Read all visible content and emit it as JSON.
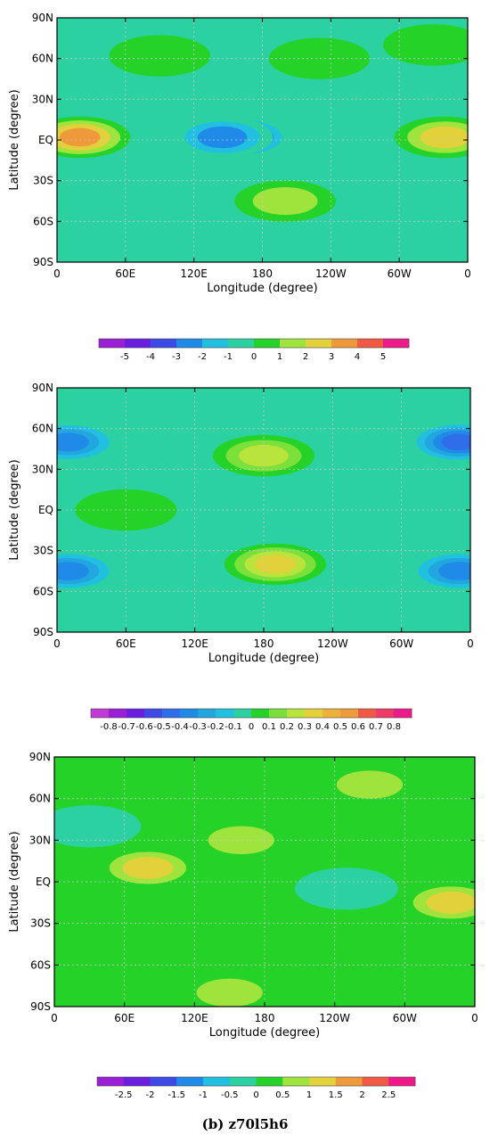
{
  "caption": "(b) z70l5h6",
  "chart_data": [
    {
      "type": "heatmap",
      "xlabel": "Longitude (degree)",
      "ylabel": "Latitude (degree)",
      "x_ticks": [
        "0",
        "60E",
        "120E",
        "180",
        "120W",
        "60W",
        "0"
      ],
      "y_ticks": [
        "90N",
        "60N",
        "30N",
        "EQ",
        "30S",
        "60S",
        "90S"
      ],
      "xlim": [
        0,
        360
      ],
      "ylim": [
        -90,
        90
      ],
      "grid": true,
      "colorbar_labels": [
        "-5",
        "-4",
        "-3",
        "-2",
        "-1",
        "0",
        "1",
        "2",
        "3",
        "4",
        "5"
      ],
      "colorbar_colors": [
        "#9b1fd6",
        "#6a1fe0",
        "#3d4ae6",
        "#1f8ae8",
        "#21bfe0",
        "#2bd1a0",
        "#25d228",
        "#9fe43c",
        "#e3d13c",
        "#ee9a3a",
        "#f05a45",
        "#ef1a8a"
      ],
      "background_color": "#2bd1a0",
      "features": [
        {
          "lon": 20,
          "lat": 2,
          "value": 3.5
        },
        {
          "lon": 340,
          "lat": 2,
          "value": 3.2
        },
        {
          "lon": 160,
          "lat": 2,
          "value": -4.5
        },
        {
          "lon": 145,
          "lat": 2,
          "value": -3.2
        },
        {
          "lon": 200,
          "lat": -45,
          "value": 1.5
        },
        {
          "lon": 90,
          "lat": 62,
          "value": 0.6
        },
        {
          "lon": 230,
          "lat": 60,
          "value": 0.6
        },
        {
          "lon": 330,
          "lat": 70,
          "value": 0.6
        }
      ]
    },
    {
      "type": "heatmap",
      "xlabel": "Longitude (degree)",
      "ylabel": "Latitude (degree)",
      "x_ticks": [
        "0",
        "60E",
        "120E",
        "180",
        "120W",
        "60W",
        "0"
      ],
      "y_ticks": [
        "90N",
        "60N",
        "30N",
        "EQ",
        "30S",
        "60S",
        "90S"
      ],
      "xlim": [
        0,
        360
      ],
      "ylim": [
        -90,
        90
      ],
      "grid": true,
      "colorbar_labels": [
        "-0.8",
        "-0.7",
        "-0.6",
        "-0.5",
        "-0.4",
        "-0.3",
        "-0.2",
        "-0.1",
        "0",
        "0.1",
        "0.2",
        "0.3",
        "0.4",
        "0.5",
        "0.6",
        "0.7",
        "0.8"
      ],
      "colorbar_colors": [
        "#c13ad6",
        "#9b1fd6",
        "#6a1fe0",
        "#3d4ae6",
        "#2f6ee8",
        "#1f8ae8",
        "#21a6e0",
        "#21bfe0",
        "#2bd1a0",
        "#25d228",
        "#7be03a",
        "#b8e43c",
        "#e3d13c",
        "#eeb23a",
        "#ee9a3a",
        "#f05a45",
        "#ef3a6a",
        "#ef1a8a"
      ],
      "background_color": "#2bd1a0",
      "features": [
        {
          "lon": 180,
          "lat": 40,
          "value": 0.35
        },
        {
          "lon": 190,
          "lat": -40,
          "value": 0.45
        },
        {
          "lon": 10,
          "lat": 50,
          "value": -0.45
        },
        {
          "lon": 350,
          "lat": 50,
          "value": -0.5
        },
        {
          "lon": 10,
          "lat": -45,
          "value": -0.4
        },
        {
          "lon": 350,
          "lat": -45,
          "value": -0.45
        },
        {
          "lon": 60,
          "lat": 0,
          "value": 0.15
        }
      ]
    },
    {
      "type": "heatmap",
      "xlabel": "Longitude (degree)",
      "ylabel": "Latitude (degree)",
      "x_ticks": [
        "0",
        "60E",
        "120E",
        "180",
        "120W",
        "60W",
        "0"
      ],
      "y_ticks": [
        "90N",
        "60N",
        "30N",
        "EQ",
        "30S",
        "60S",
        "90S"
      ],
      "xlim": [
        0,
        360
      ],
      "ylim": [
        -90,
        90
      ],
      "grid": true,
      "colorbar_labels": [
        "-2.5",
        "-2",
        "-1.5",
        "-1",
        "-0.5",
        "0",
        "0.5",
        "1",
        "1.5",
        "2",
        "2.5"
      ],
      "colorbar_colors": [
        "#9b1fd6",
        "#6a1fe0",
        "#3d4ae6",
        "#1f8ae8",
        "#21bfe0",
        "#2bd1a0",
        "#25d228",
        "#9fe43c",
        "#e3d13c",
        "#ee9a3a",
        "#f05a45",
        "#ef1a8a"
      ],
      "background_color": "#25d228",
      "features": [
        {
          "lon": 80,
          "lat": 10,
          "value": 1.5
        },
        {
          "lon": 160,
          "lat": 30,
          "value": 0.8
        },
        {
          "lon": 340,
          "lat": -15,
          "value": 1.6
        },
        {
          "lon": 270,
          "lat": 70,
          "value": 0.8
        },
        {
          "lon": 30,
          "lat": 40,
          "value": -0.3
        },
        {
          "lon": 250,
          "lat": -5,
          "value": -0.4
        },
        {
          "lon": 150,
          "lat": -80,
          "value": 0.8
        }
      ]
    }
  ]
}
